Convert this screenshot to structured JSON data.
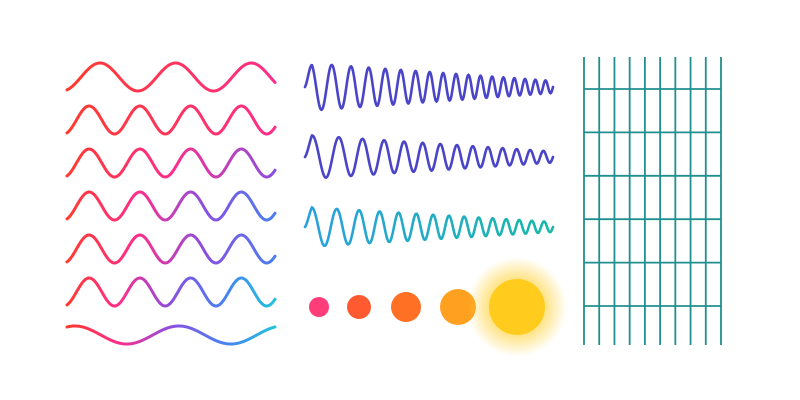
{
  "sine_waves": {
    "gradient_stops": [
      "#ff3b2f",
      "#ff2d8a",
      "#8a4fe0",
      "#4a7ff0",
      "#22c3dc"
    ],
    "rows": [
      {
        "cycles": 2.75,
        "end_mix": 0.25
      },
      {
        "cycles": 4.1,
        "end_mix": 0.35
      },
      {
        "cycles": 4.1,
        "end_mix": 0.5
      },
      {
        "cycles": 4.1,
        "end_mix": 0.65
      },
      {
        "cycles": 4.1,
        "end_mix": 0.85
      },
      {
        "cycles": 4.1,
        "end_mix": 1.0
      },
      {
        "cycles": 2.0,
        "end_mix": 1.0
      }
    ]
  },
  "chirp_waves": [
    {
      "colors": [
        "#4a44c8",
        "#4a44c8"
      ],
      "cycles": 18
    },
    {
      "colors": [
        "#4a44c8",
        "#4a44c8"
      ],
      "cycles": 14
    },
    {
      "colors": [
        "#2aa0e0",
        "#19b8a8"
      ],
      "cycles": 15
    }
  ],
  "dots": [
    {
      "color": "#ff3d7a"
    },
    {
      "color": "#ff5a30"
    },
    {
      "color": "#ff6f24"
    },
    {
      "color": "#ffa020"
    },
    {
      "color": "#ffcc1e",
      "glow": true
    }
  ],
  "grid": {
    "color": "#1f8f8f",
    "columns": 10,
    "rows": 6
  }
}
